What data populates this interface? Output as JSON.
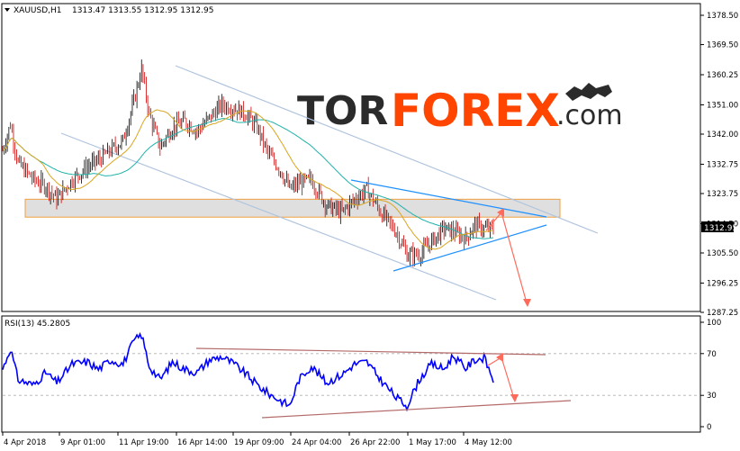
{
  "header": {
    "symbol": "XAUUSD,H1",
    "ohlc": "1313.47 1313.55 1312.95 1312.95"
  },
  "logo": {
    "part1": "TOR",
    "part2": "FOREX",
    "part3": ".com",
    "icon": "bull-bear-icon"
  },
  "price_tag": "1312.95",
  "rsi_header": "RSI(13) 45.2805",
  "colors": {
    "bull_candle": "#000000",
    "bear_candle": "#cc0000",
    "ma_slow": "#20b2aa",
    "ma_fast": "#daa520",
    "channel": "#b0c4de",
    "triangle": "#1e90ff",
    "zone_fill": "#d9d9d9",
    "zone_border": "#f0a040",
    "forecast_arrow": "#ff6a5a",
    "rsi_line": "#0000ff",
    "rsi_trend": "#b56a6a",
    "logo_dark": "#2b2b2b",
    "logo_orange": "#ff4500"
  },
  "chart_data": [
    {
      "type": "candlestick",
      "title": "XAUUSD,H1",
      "ylim": [
        1285.0,
        1385.0
      ],
      "y_ticks": [
        "1378.50",
        "1369.50",
        "1360.25",
        "1351.00",
        "1342.00",
        "1332.75",
        "1323.75",
        "1314.50",
        "1305.50",
        "1296.25",
        "1287.25"
      ],
      "x_ticks": [
        "4 Apr 2018",
        "9 Apr 01:00",
        "11 Apr 19:00",
        "16 Apr 14:00",
        "19 Apr 09:00",
        "24 Apr 04:00",
        "26 Apr 22:00",
        "1 May 17:00",
        "4 May 12:00"
      ],
      "last_price": 1312.95,
      "approx_close_path": [
        [
          0,
          1337
        ],
        [
          5,
          1345
        ],
        [
          10,
          1333
        ],
        [
          20,
          1328
        ],
        [
          28,
          1326
        ],
        [
          35,
          1322
        ],
        [
          45,
          1328
        ],
        [
          55,
          1332
        ],
        [
          62,
          1334
        ],
        [
          70,
          1337
        ],
        [
          78,
          1340
        ],
        [
          85,
          1352
        ],
        [
          90,
          1362
        ],
        [
          95,
          1348
        ],
        [
          102,
          1338
        ],
        [
          110,
          1344
        ],
        [
          118,
          1346
        ],
        [
          126,
          1343
        ],
        [
          134,
          1347
        ],
        [
          142,
          1351
        ],
        [
          150,
          1350
        ],
        [
          158,
          1348
        ],
        [
          165,
          1344
        ],
        [
          172,
          1336
        ],
        [
          180,
          1331
        ],
        [
          186,
          1325
        ],
        [
          192,
          1327
        ],
        [
          200,
          1328
        ],
        [
          210,
          1320
        ],
        [
          220,
          1318
        ],
        [
          228,
          1322
        ],
        [
          236,
          1325
        ],
        [
          245,
          1318
        ],
        [
          255,
          1312
        ],
        [
          262,
          1305
        ],
        [
          270,
          1305
        ],
        [
          278,
          1309
        ],
        [
          286,
          1313
        ],
        [
          292,
          1312
        ],
        [
          300,
          1310
        ],
        [
          306,
          1314
        ],
        [
          312,
          1313
        ],
        [
          318,
          1312.95
        ]
      ],
      "zone": [
        1316.5,
        1322.0
      ],
      "series": [
        {
          "name": "",
          "kind": "moving-average-fast"
        },
        {
          "name": "",
          "kind": "moving-average-slow"
        }
      ]
    },
    {
      "type": "line",
      "title": "RSI(13) 45.2805",
      "ylim": [
        0,
        100
      ],
      "y_ticks": [
        "100",
        "70",
        "30",
        "0"
      ],
      "x_ticks": [
        "4 Apr 2018",
        "9 Apr 01:00",
        "11 Apr 19:00",
        "16 Apr 14:00",
        "19 Apr 09:00",
        "24 Apr 04:00",
        "26 Apr 22:00",
        "1 May 17:00",
        "4 May 12:00"
      ],
      "levels": [
        70,
        30
      ],
      "approx_values": [
        [
          0,
          55
        ],
        [
          5,
          75
        ],
        [
          10,
          45
        ],
        [
          20,
          40
        ],
        [
          28,
          52
        ],
        [
          35,
          42
        ],
        [
          45,
          60
        ],
        [
          55,
          62
        ],
        [
          62,
          55
        ],
        [
          70,
          64
        ],
        [
          78,
          60
        ],
        [
          85,
          82
        ],
        [
          90,
          88
        ],
        [
          95,
          58
        ],
        [
          102,
          45
        ],
        [
          110,
          62
        ],
        [
          118,
          55
        ],
        [
          126,
          52
        ],
        [
          134,
          64
        ],
        [
          142,
          67
        ],
        [
          150,
          60
        ],
        [
          158,
          50
        ],
        [
          165,
          40
        ],
        [
          172,
          32
        ],
        [
          180,
          25
        ],
        [
          186,
          20
        ],
        [
          192,
          45
        ],
        [
          200,
          58
        ],
        [
          210,
          42
        ],
        [
          220,
          50
        ],
        [
          228,
          60
        ],
        [
          236,
          62
        ],
        [
          245,
          45
        ],
        [
          255,
          28
        ],
        [
          262,
          20
        ],
        [
          270,
          45
        ],
        [
          278,
          60
        ],
        [
          286,
          55
        ],
        [
          292,
          68
        ],
        [
          300,
          56
        ],
        [
          306,
          64
        ],
        [
          312,
          66
        ],
        [
          318,
          45.28
        ]
      ]
    }
  ]
}
